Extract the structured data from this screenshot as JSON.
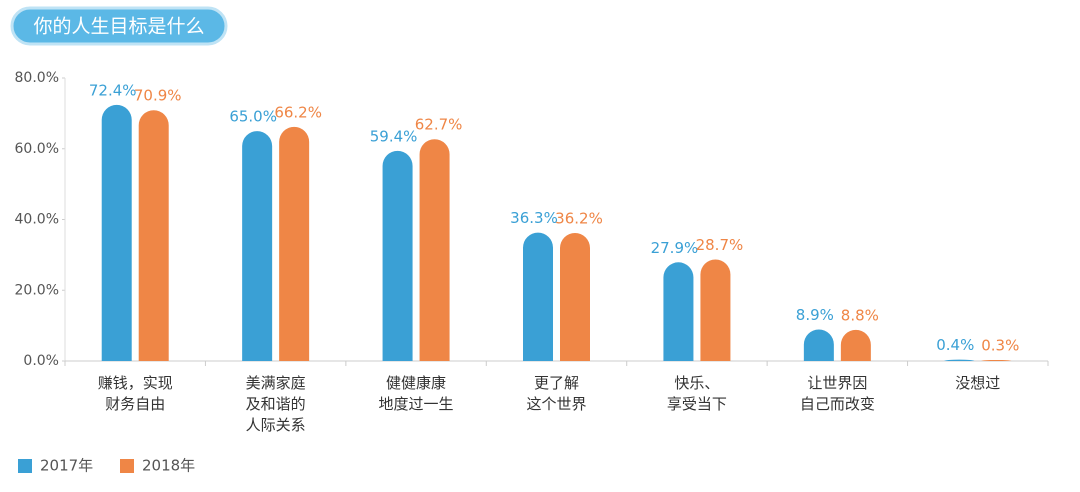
{
  "chart_data": {
    "type": "bar",
    "title": "你的人生目标是什么",
    "categories": [
      "赚钱，实现\n财务自由",
      "美满家庭\n及和谐的\n人际关系",
      "健健康康\n地度过一生",
      "更了解\n这个世界",
      "快乐、\n享受当下",
      "让世界因\n自己而改变",
      "没想过"
    ],
    "series": [
      {
        "name": "2017年",
        "color": "#3aa0d5",
        "values": [
          72.4,
          65.0,
          59.4,
          36.3,
          27.9,
          8.9,
          0.4
        ],
        "value_labels": [
          "72.4%",
          "65.0%",
          "59.4%",
          "36.3%",
          "27.9%",
          "8.9%",
          "0.4%"
        ]
      },
      {
        "name": "2018年",
        "color": "#ef8646",
        "values": [
          70.9,
          66.2,
          62.7,
          36.2,
          28.7,
          8.8,
          0.3
        ],
        "value_labels": [
          "70.9%",
          "66.2%",
          "62.7%",
          "36.2%",
          "28.7%",
          "8.8%",
          "0.3%"
        ]
      }
    ],
    "ylim": [
      0,
      80
    ],
    "yticks": [
      {
        "value": 0,
        "label": "0.0%"
      },
      {
        "value": 20,
        "label": "20.0%"
      },
      {
        "value": 40,
        "label": "40.0%"
      },
      {
        "value": 60,
        "label": "60.0%"
      },
      {
        "value": 80,
        "label": "80.0%"
      }
    ],
    "grid": false,
    "legend": "bottom-left"
  }
}
